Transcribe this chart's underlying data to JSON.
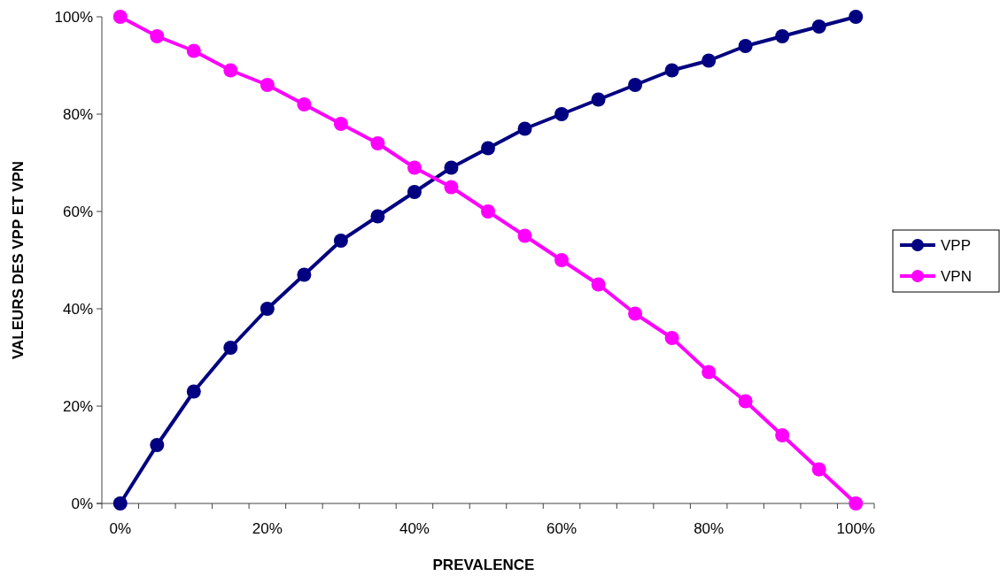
{
  "chart_data": {
    "type": "line",
    "xlabel": "PREVALENCE",
    "ylabel": "VALEURS DES VPP ET VPN",
    "categories": [
      "0%",
      null,
      null,
      null,
      "20%",
      null,
      null,
      null,
      "40%",
      null,
      null,
      null,
      "60%",
      null,
      null,
      null,
      "80%",
      null,
      null,
      null,
      "100%"
    ],
    "series": [
      {
        "name": "VPP",
        "color": "#000080",
        "values": [
          0,
          12,
          23,
          32,
          40,
          47,
          54,
          59,
          64,
          69,
          73,
          77,
          80,
          83,
          86,
          89,
          91,
          94,
          96,
          98,
          100
        ]
      },
      {
        "name": "VPN",
        "color": "#ff00ff",
        "values": [
          100,
          96,
          93,
          89,
          86,
          82,
          78,
          74,
          69,
          65,
          60,
          55,
          50,
          45,
          39,
          34,
          27,
          21,
          14,
          7,
          0
        ]
      }
    ],
    "ylim": [
      0,
      100
    ],
    "yticks": [
      {
        "value": 0,
        "label": "0%"
      },
      {
        "value": 20,
        "label": "20%"
      },
      {
        "value": 40,
        "label": "40%"
      },
      {
        "value": 60,
        "label": "60%"
      },
      {
        "value": 80,
        "label": "80%"
      },
      {
        "value": 100,
        "label": "100%"
      }
    ],
    "marker": "circle",
    "line_style": "solid",
    "legend": "right",
    "grid": false
  }
}
